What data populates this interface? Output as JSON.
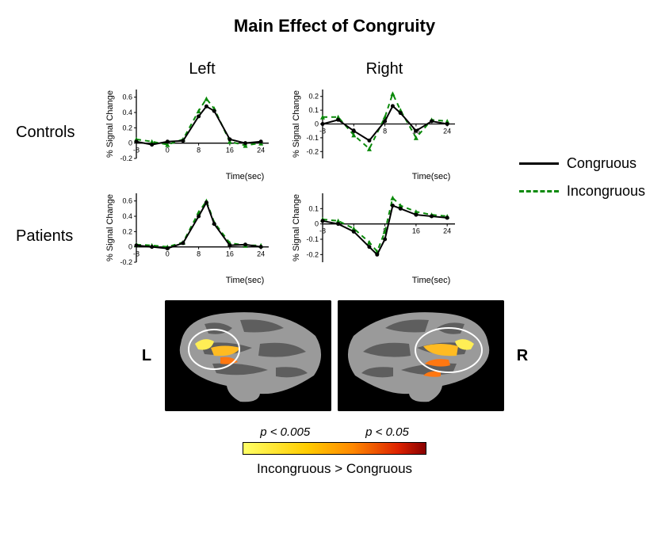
{
  "title": "Main Effect of Congruity",
  "columns": {
    "left": "Left",
    "right": "Right"
  },
  "rows": {
    "controls": "Controls",
    "patients": "Patients"
  },
  "legend": {
    "congruous": "Congruous",
    "incongruous": "Incongruous"
  },
  "sideLabels": {
    "L": "L",
    "R": "R"
  },
  "pvalues": {
    "low": "p < 0.005",
    "high": "p < 0.05"
  },
  "contrast": "Incongruous  >  Congruous",
  "axis": {
    "xlabel": "Time(sec)",
    "ylabel": "% Signal Change"
  },
  "charts": {
    "controlsLeft": {
      "xlim": [
        -8,
        26
      ],
      "ylim": [
        -0.2,
        0.7
      ],
      "yticks": [
        -0.2,
        0,
        0.2,
        0.4,
        0.6
      ],
      "xticks": [
        -8,
        0,
        8,
        16,
        24
      ],
      "congruous": {
        "x": [
          -8,
          -4,
          0,
          4,
          8,
          10,
          12,
          16,
          20,
          24
        ],
        "y": [
          0.02,
          -0.02,
          0.02,
          0.03,
          0.35,
          0.48,
          0.42,
          0.05,
          0.0,
          0.02
        ],
        "color": "#000000",
        "dash": false,
        "width": 2
      },
      "incongruous": {
        "x": [
          -8,
          -4,
          0,
          4,
          8,
          10,
          12,
          16,
          20,
          24
        ],
        "y": [
          0.05,
          0.02,
          -0.02,
          0.05,
          0.42,
          0.58,
          0.45,
          0.02,
          -0.03,
          0.0
        ],
        "color": "#0a8a0a",
        "dash": true,
        "width": 2
      }
    },
    "controlsRight": {
      "xlim": [
        -8,
        26
      ],
      "ylim": [
        -0.25,
        0.25
      ],
      "yticks": [
        -0.2,
        -0.1,
        0,
        0.1,
        0.2
      ],
      "xticks": [
        -8,
        0,
        8,
        16,
        24
      ],
      "congruous": {
        "x": [
          -8,
          -4,
          0,
          4,
          8,
          10,
          12,
          16,
          20,
          24
        ],
        "y": [
          0.0,
          0.03,
          -0.05,
          -0.12,
          0.02,
          0.13,
          0.08,
          -0.05,
          0.02,
          0.0
        ],
        "color": "#000000",
        "dash": false,
        "width": 2
      },
      "incongruous": {
        "x": [
          -8,
          -4,
          0,
          4,
          8,
          10,
          12,
          16,
          20,
          24
        ],
        "y": [
          0.05,
          0.05,
          -0.08,
          -0.18,
          0.05,
          0.22,
          0.1,
          -0.1,
          0.03,
          0.02
        ],
        "color": "#0a8a0a",
        "dash": true,
        "width": 2
      }
    },
    "patientsLeft": {
      "xlim": [
        -8,
        26
      ],
      "ylim": [
        -0.2,
        0.7
      ],
      "yticks": [
        -0.2,
        0,
        0.2,
        0.4,
        0.6
      ],
      "xticks": [
        -8,
        0,
        8,
        16,
        24
      ],
      "congruous": {
        "x": [
          -8,
          -4,
          0,
          4,
          8,
          10,
          12,
          16,
          20,
          24
        ],
        "y": [
          0.02,
          0.0,
          -0.02,
          0.05,
          0.4,
          0.58,
          0.3,
          0.02,
          0.03,
          0.0
        ],
        "color": "#000000",
        "dash": false,
        "width": 2
      },
      "incongruous": {
        "x": [
          -8,
          -4,
          0,
          4,
          8,
          10,
          12,
          16,
          20,
          24
        ],
        "y": [
          0.03,
          0.02,
          0.0,
          0.06,
          0.45,
          0.6,
          0.32,
          0.05,
          0.02,
          0.02
        ],
        "color": "#0a8a0a",
        "dash": true,
        "width": 2
      }
    },
    "patientsRight": {
      "xlim": [
        -8,
        26
      ],
      "ylim": [
        -0.25,
        0.2
      ],
      "yticks": [
        -0.2,
        -0.1,
        0,
        0.1
      ],
      "xticks": [
        -8,
        0,
        8,
        16,
        24
      ],
      "congruous": {
        "x": [
          -8,
          -4,
          0,
          4,
          6,
          8,
          10,
          12,
          16,
          20,
          24
        ],
        "y": [
          0.02,
          0.0,
          -0.05,
          -0.15,
          -0.2,
          -0.1,
          0.12,
          0.1,
          0.06,
          0.05,
          0.04
        ],
        "color": "#000000",
        "dash": false,
        "width": 2
      },
      "incongruous": {
        "x": [
          -8,
          -4,
          0,
          4,
          6,
          8,
          10,
          12,
          16,
          20,
          24
        ],
        "y": [
          0.03,
          0.02,
          -0.03,
          -0.12,
          -0.18,
          -0.05,
          0.17,
          0.12,
          0.08,
          0.06,
          0.05
        ],
        "color": "#0a8a0a",
        "dash": true,
        "width": 2
      }
    }
  },
  "chartStyle": {
    "background": "#ffffff",
    "axisColor": "#000000",
    "tickFontSize": 9,
    "labelFontSize": 11,
    "markerSize": 2.5
  },
  "brainStyle": {
    "background": "#000000",
    "cortexLight": "#9a9a9a",
    "cortexDark": "#5e5e5e",
    "activationColors": [
      "#ffee55",
      "#ffbb22",
      "#ff7711"
    ],
    "circleStroke": "#ffffff",
    "circleWidth": 2
  },
  "colorbarGradient": [
    "#ffff66",
    "#ffcc00",
    "#ff8800",
    "#dd2200",
    "#880000"
  ]
}
